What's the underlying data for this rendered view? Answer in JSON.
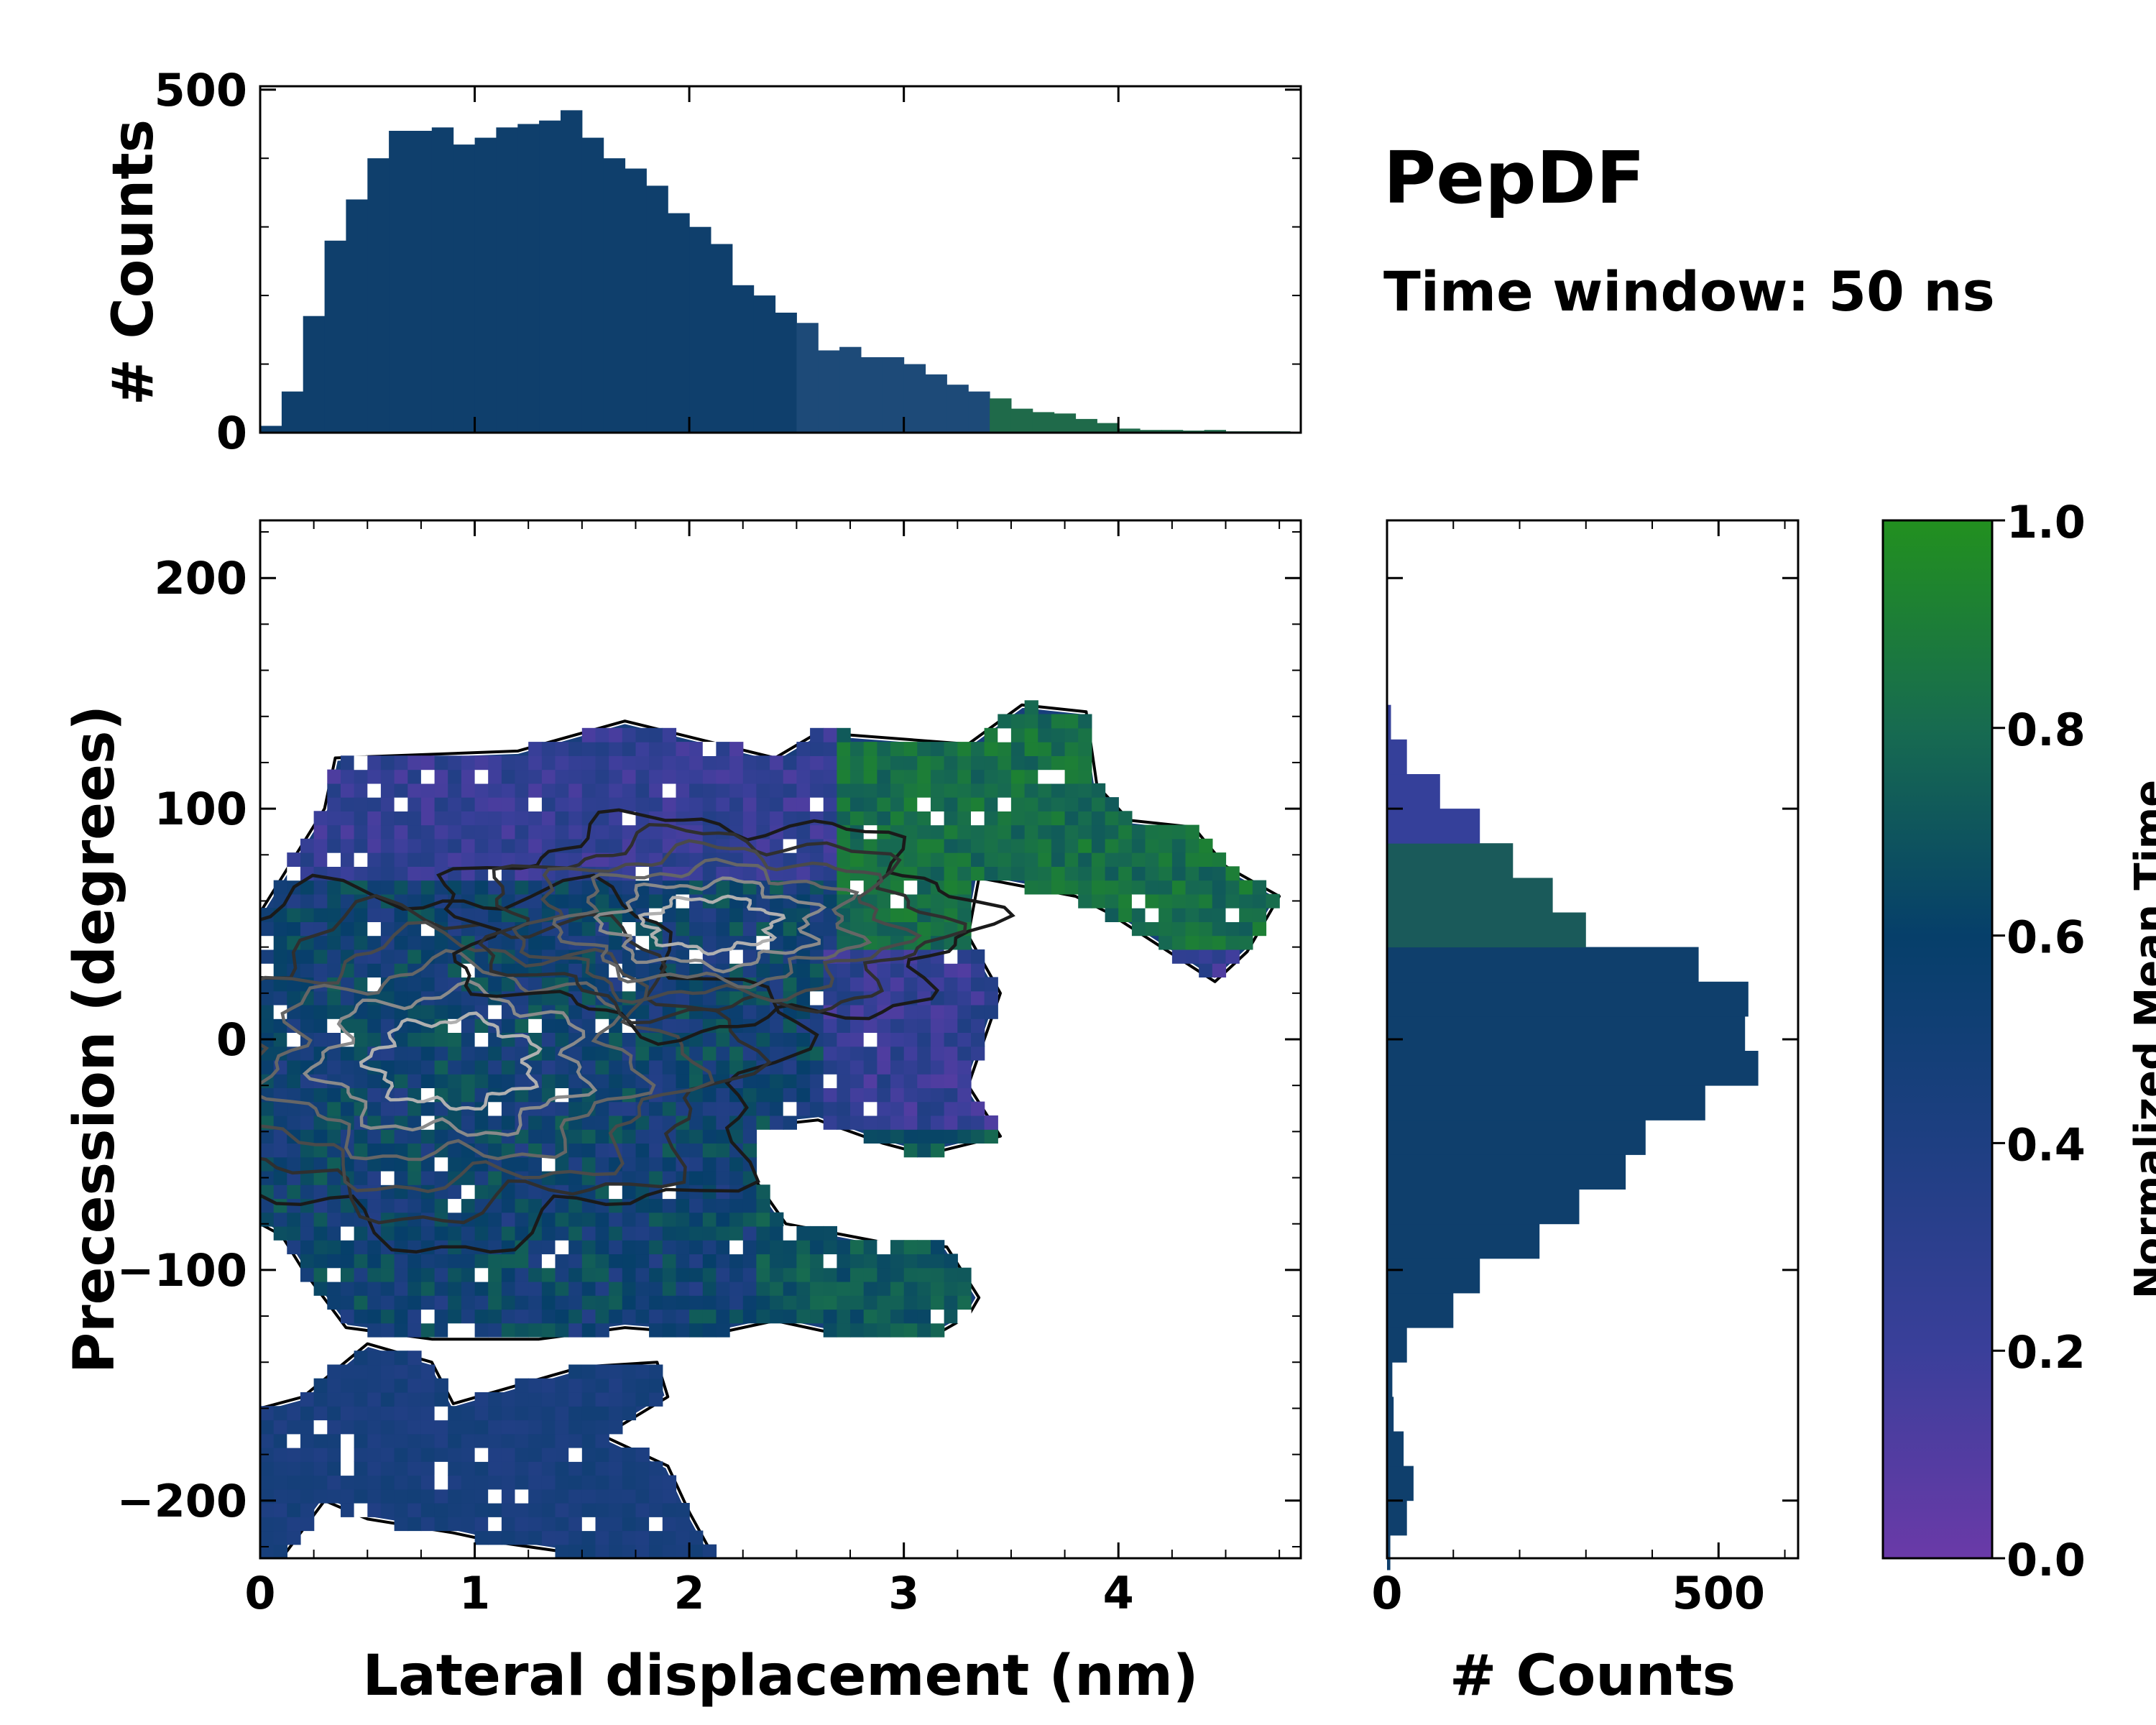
{
  "chart_data": {
    "type": "joint-heatmap",
    "title": "PepDF",
    "subtitle": "Time window: 50 ns",
    "main": {
      "type": "heatmap",
      "xlabel": "Lateral displacement (nm)",
      "ylabel": "Precession (degrees)",
      "xlim": [
        0,
        4.85
      ],
      "ylim": [
        -225,
        225
      ],
      "xticks": [
        0,
        1,
        2,
        3,
        4
      ],
      "yticks": [
        -200,
        -100,
        0,
        100,
        200
      ],
      "xtick_labels": [
        "0",
        "1",
        "2",
        "3",
        "4"
      ],
      "ytick_labels": [
        "−200",
        "−100",
        "0",
        "100",
        "200"
      ],
      "regions": [
        {
          "name": "core",
          "color_value": 0.45,
          "outline": [
            [
              0,
              55
            ],
            [
              0.3,
              100
            ],
            [
              0.35,
              122
            ],
            [
              1.2,
              125
            ],
            [
              1.7,
              138
            ],
            [
              2.4,
              122
            ],
            [
              2.6,
              133
            ],
            [
              3.3,
              128
            ],
            [
              3.55,
              145
            ],
            [
              3.85,
              142
            ],
            [
              3.9,
              110
            ],
            [
              4.05,
              95
            ],
            [
              4.35,
              92
            ],
            [
              4.5,
              75
            ],
            [
              4.75,
              62
            ],
            [
              4.6,
              38
            ],
            [
              4.45,
              25
            ],
            [
              4.2,
              40
            ],
            [
              3.95,
              55
            ],
            [
              3.8,
              62
            ],
            [
              3.35,
              70
            ],
            [
              3.3,
              45
            ],
            [
              3.45,
              20
            ],
            [
              3.3,
              -20
            ],
            [
              3.45,
              -42
            ],
            [
              3.1,
              -50
            ],
            [
              2.9,
              -45
            ],
            [
              2.6,
              -35
            ],
            [
              2.3,
              -38
            ],
            [
              2.3,
              -60
            ],
            [
              2.45,
              -80
            ],
            [
              2.9,
              -88
            ],
            [
              3.2,
              -90
            ],
            [
              3.35,
              -112
            ],
            [
              3.3,
              -120
            ],
            [
              3.15,
              -128
            ],
            [
              2.7,
              -128
            ],
            [
              2.4,
              -122
            ],
            [
              2.1,
              -128
            ],
            [
              1.7,
              -125
            ],
            [
              1.3,
              -130
            ],
            [
              0.8,
              -130
            ],
            [
              0.4,
              -125
            ],
            [
              0.2,
              -100
            ],
            [
              0.1,
              -85
            ],
            [
              0,
              -80
            ]
          ]
        },
        {
          "name": "lower-lobe",
          "color_value": 0.42,
          "outline": [
            [
              0,
              -160
            ],
            [
              0.2,
              -155
            ],
            [
              0.5,
              -132
            ],
            [
              0.8,
              -140
            ],
            [
              0.9,
              -158
            ],
            [
              1.2,
              -150
            ],
            [
              1.5,
              -142
            ],
            [
              1.85,
              -140
            ],
            [
              1.9,
              -155
            ],
            [
              1.6,
              -172
            ],
            [
              1.9,
              -185
            ],
            [
              2.0,
              -205
            ],
            [
              2.1,
              -222
            ],
            [
              1.9,
              -225
            ],
            [
              1.4,
              -222
            ],
            [
              1.1,
              -218
            ],
            [
              0.9,
              -214
            ],
            [
              0.5,
              -208
            ],
            [
              0.3,
              -200
            ],
            [
              0.1,
              -225
            ],
            [
              0,
              -225
            ]
          ]
        }
      ],
      "contour_levels": 6
    },
    "top_histogram": {
      "type": "bar",
      "ylabel": "# Counts",
      "yticks": [
        0,
        500
      ],
      "ytick_labels": [
        "0",
        "500"
      ],
      "ylim": [
        0,
        505
      ],
      "x": [
        0.0,
        0.1,
        0.2,
        0.3,
        0.4,
        0.5,
        0.6,
        0.7,
        0.8,
        0.9,
        1.0,
        1.1,
        1.2,
        1.3,
        1.4,
        1.5,
        1.6,
        1.7,
        1.8,
        1.9,
        2.0,
        2.1,
        2.2,
        2.3,
        2.4,
        2.5,
        2.6,
        2.7,
        2.8,
        2.9,
        3.0,
        3.1,
        3.2,
        3.3,
        3.4,
        3.5,
        3.6,
        3.7,
        3.8,
        3.9,
        4.0,
        4.1,
        4.2,
        4.3,
        4.4,
        4.5,
        4.6,
        4.7
      ],
      "values": [
        10,
        60,
        170,
        280,
        340,
        400,
        440,
        440,
        445,
        420,
        430,
        445,
        450,
        455,
        470,
        430,
        400,
        385,
        360,
        320,
        300,
        275,
        215,
        200,
        175,
        160,
        120,
        125,
        110,
        110,
        100,
        85,
        70,
        60,
        50,
        35,
        30,
        28,
        20,
        14,
        6,
        4,
        4,
        3,
        4,
        2,
        2,
        2
      ]
    },
    "right_histogram": {
      "type": "barh",
      "xlabel": "# Counts",
      "xticks": [
        0,
        500
      ],
      "xtick_labels": [
        "0",
        "500"
      ],
      "xlim": [
        0,
        620
      ],
      "y": [
        -222.5,
        -207.5,
        -192.5,
        -177.5,
        -162.5,
        -147.5,
        -132.5,
        -117.5,
        -102.5,
        -87.5,
        -72.5,
        -57.5,
        -42.5,
        -27.5,
        -12.5,
        2.5,
        17.5,
        32.5,
        47.5,
        62.5,
        77.5,
        92.5,
        107.5,
        122.5,
        137.5
      ],
      "values": [
        5,
        30,
        40,
        25,
        10,
        8,
        30,
        100,
        140,
        230,
        290,
        360,
        390,
        480,
        560,
        540,
        545,
        470,
        300,
        250,
        190,
        140,
        80,
        30,
        6
      ]
    },
    "colorbar": {
      "label": "Normalized Mean Time",
      "ticks": [
        0.0,
        0.2,
        0.4,
        0.6,
        0.8,
        1.0
      ],
      "tick_labels": [
        "0.0",
        "0.2",
        "0.4",
        "0.6",
        "0.8",
        "1.0"
      ],
      "colors": [
        "#6a3aa8",
        "#3a3f9a",
        "#1e3f82",
        "#063f6a",
        "#176b50",
        "#22901f"
      ]
    }
  }
}
